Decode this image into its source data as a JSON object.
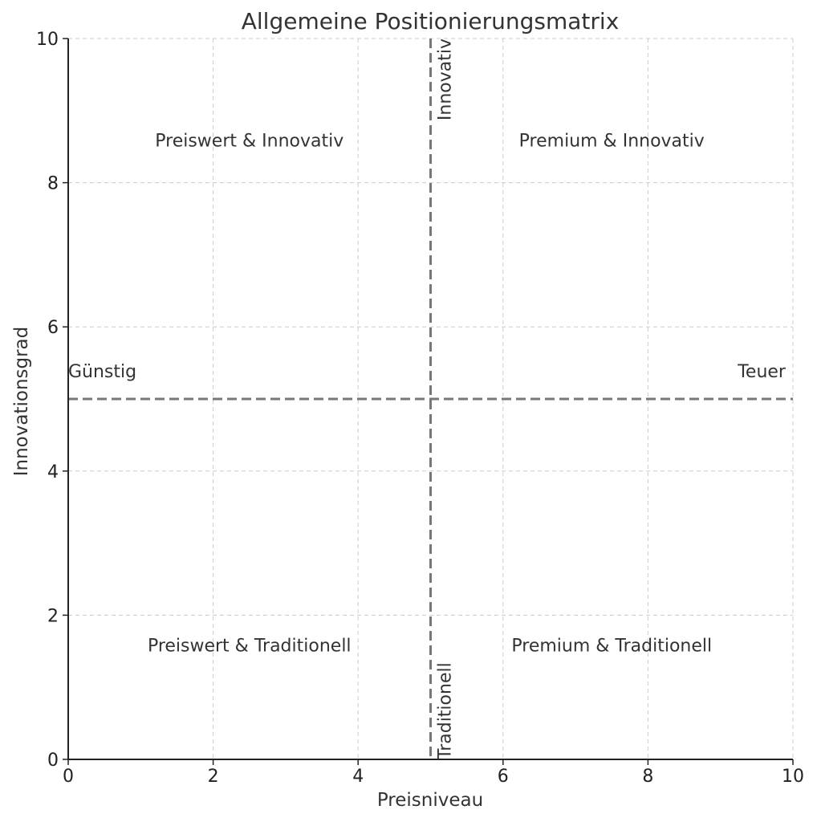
{
  "chart_data": {
    "type": "scatter",
    "title": "Allgemeine Positionierungsmatrix",
    "xlabel": "Preisniveau",
    "ylabel": "Innovationsgrad",
    "xlim": [
      0,
      10
    ],
    "ylim": [
      0,
      10
    ],
    "xticks": [
      0,
      2,
      4,
      6,
      8,
      10
    ],
    "yticks": [
      0,
      2,
      4,
      6,
      8,
      10
    ],
    "grid": true,
    "dividers": {
      "x": 5,
      "y": 5
    },
    "quadrant_labels": [
      {
        "text": "Preiswert & Innovativ",
        "x": 2.5,
        "y": 8.5
      },
      {
        "text": "Premium & Innovativ",
        "x": 7.5,
        "y": 8.5
      },
      {
        "text": "Preiswert & Traditionell",
        "x": 2.5,
        "y": 1.5
      },
      {
        "text": "Premium & Traditionell",
        "x": 7.5,
        "y": 1.5
      }
    ],
    "axis_annotations": [
      {
        "text": "Günstig",
        "x": 0,
        "y": 5.3,
        "anchor": "start",
        "rotate": 0
      },
      {
        "text": "Teuer",
        "x": 9.9,
        "y": 5.3,
        "anchor": "end",
        "rotate": 0
      },
      {
        "text": "Innovativ",
        "x": 5.2,
        "y": 10,
        "anchor": "end",
        "rotate": -90
      },
      {
        "text": "Traditionell",
        "x": 5.2,
        "y": 0,
        "anchor": "start",
        "rotate": -90
      }
    ],
    "colors": {
      "divider": "#777777",
      "grid": "#cccccc",
      "axis": "#222222",
      "text": "#333333"
    }
  }
}
